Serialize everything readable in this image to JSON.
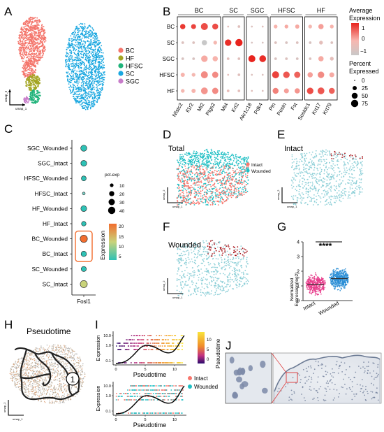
{
  "panel_letters": [
    "A",
    "B",
    "C",
    "D",
    "E",
    "F",
    "G",
    "H",
    "I",
    "J"
  ],
  "colors": {
    "BC": "#f4756b",
    "HF": "#a3a522",
    "HFSC": "#1fb37a",
    "SC": "#1aa7e0",
    "SGC": "#c77cc9",
    "intact": "#f8766d",
    "wounded": "#1fbfc4",
    "highlight": "#a50f15",
    "gradient_low": "#d9d9d9",
    "gradient_high": "#e8241e"
  },
  "panelA": {
    "umap_x": "umap_1",
    "umap_y": "umap_2",
    "legend": [
      {
        "label": "BC",
        "color": "#f4756b"
      },
      {
        "label": "HF",
        "color": "#a3a522"
      },
      {
        "label": "HFSC",
        "color": "#1fb37a"
      },
      {
        "label": "SC",
        "color": "#1aa7e0"
      },
      {
        "label": "SGC",
        "color": "#c77cc9"
      }
    ]
  },
  "panelB": {
    "chart_data": {
      "type": "dotplot",
      "groups": [
        {
          "name": "BC",
          "genes": [
            "Nfatc2",
            "Il1r2",
            "Mt2",
            "Ptgs2"
          ]
        },
        {
          "name": "SC",
          "genes": [
            "Mt4",
            "Krt2"
          ]
        },
        {
          "name": "SGC",
          "genes": [
            "Akr1c18",
            "Pdk4"
          ]
        },
        {
          "name": "HFSC",
          "genes": [
            "Ptn",
            "Postn",
            "Fst"
          ]
        },
        {
          "name": "HF",
          "genes": [
            "Sostdc1",
            "Krt17",
            "Krt79"
          ]
        }
      ],
      "rows": [
        "BC",
        "SC",
        "SGC",
        "HFSC",
        "HF"
      ],
      "expression": [
        [
          1.4,
          1.3,
          1.2,
          1.2,
          -0.3,
          -0.4,
          -0.5,
          -0.4,
          0.2,
          0.3,
          0.3,
          0.1,
          0.4,
          0.2
        ],
        [
          -0.5,
          -0.5,
          -1.0,
          0.1,
          1.5,
          1.6,
          -0.6,
          -0.6,
          -0.5,
          -0.6,
          -0.5,
          -0.6,
          -0.3,
          -0.5
        ],
        [
          -0.6,
          -0.6,
          0.3,
          0.2,
          -0.3,
          -0.4,
          1.6,
          1.5,
          -0.6,
          -0.5,
          -0.6,
          -0.5,
          0.3,
          -0.3
        ],
        [
          0.2,
          0.1,
          0.6,
          0.6,
          -0.3,
          -0.4,
          -0.5,
          -0.5,
          1.3,
          1.1,
          1.0,
          0.4,
          0.6,
          0.3
        ],
        [
          0.1,
          0.2,
          0.5,
          0.6,
          -0.2,
          -0.3,
          -0.4,
          -0.5,
          0.7,
          0.4,
          0.5,
          1.2,
          1.1,
          1.0
        ]
      ],
      "pct_expressed": [
        [
          40,
          35,
          70,
          50,
          5,
          10,
          5,
          5,
          20,
          20,
          25,
          20,
          40,
          20
        ],
        [
          10,
          10,
          40,
          20,
          60,
          75,
          5,
          5,
          10,
          10,
          10,
          10,
          20,
          10
        ],
        [
          10,
          10,
          60,
          40,
          10,
          10,
          70,
          65,
          10,
          10,
          10,
          10,
          40,
          20
        ],
        [
          25,
          20,
          70,
          55,
          5,
          10,
          5,
          5,
          70,
          60,
          55,
          40,
          60,
          35
        ],
        [
          20,
          25,
          65,
          55,
          10,
          10,
          5,
          5,
          50,
          35,
          40,
          60,
          65,
          50
        ]
      ],
      "legend_color": {
        "title": "Average\nExpression",
        "ticks": [
          "1",
          "0",
          "−1"
        ]
      },
      "legend_size": {
        "title": "Percent\nExpressed",
        "values": [
          0,
          25,
          50,
          75
        ],
        "labels": [
          "0",
          "25",
          "50",
          "75"
        ]
      }
    }
  },
  "panelC": {
    "chart_data": {
      "type": "dotplot",
      "gene": "Fosl1",
      "rows": [
        "SGC_Wounded",
        "SGC_Intact",
        "HFSC_Wounded",
        "HFSC_Intact",
        "HF_Wounded",
        "HF_Intact",
        "BC_Wounded",
        "BC_Intact",
        "SC_Wounded",
        "SC_Intact"
      ],
      "expression": [
        4,
        5,
        6,
        3,
        6,
        4,
        19,
        6,
        5,
        12
      ],
      "pct_exp": [
        28,
        26,
        18,
        6,
        26,
        16,
        40,
        22,
        20,
        38
      ],
      "colors": [
        "#2ec1b5",
        "#2ec1b5",
        "#2ec1b5",
        "#7bd3c9",
        "#2ec1b5",
        "#2ec1b5",
        "#f26d2e",
        "#2ec1b5",
        "#2ec1b5",
        "#c9d37a"
      ],
      "size_legend": {
        "title": "pct.exp",
        "values": [
          10,
          20,
          30,
          40
        ],
        "labels": [
          "10",
          "20",
          "30",
          "40"
        ]
      },
      "color_legend": {
        "title": "Expression",
        "ticks": [
          "20",
          "15",
          "10",
          "5"
        ]
      },
      "highlight_rows": [
        "BC_Wounded",
        "BC_Intact"
      ]
    }
  },
  "panelD": {
    "label": "Total",
    "legend": [
      {
        "label": "Intact",
        "color": "#f8766d"
      },
      {
        "label": "Wounded",
        "color": "#1fbfc4"
      }
    ],
    "umap_x": "umap_1",
    "umap_y": "umap_2"
  },
  "panelE": {
    "label": "Intact",
    "umap_x": "umap_1",
    "umap_y": "umap_2"
  },
  "panelF": {
    "label": "Wounded",
    "umap_x": "umap_1",
    "umap_y": "umap_2"
  },
  "panelG": {
    "chart_data": {
      "type": "swarm",
      "categories": [
        "Intact",
        "Wounded"
      ],
      "medians": [
        1.1,
        1.5
      ],
      "ylabel": "Normalized\nExpression(log2)",
      "ylim": [
        0,
        4
      ],
      "yticks": [
        "0",
        "1",
        "2",
        "3",
        "4"
      ],
      "significance": "****",
      "colors": [
        "#e83e8c",
        "#2c8fd6"
      ]
    }
  },
  "panelH": {
    "title": "Pseudotime",
    "root_label": "1",
    "umap_x": "umap_1",
    "umap_y": "umap_2"
  },
  "panelI": {
    "top": {
      "ylabel": "Expression",
      "xlabel": "Pseudotime",
      "yticks": [
        "10.0",
        "1.0",
        "0.1"
      ],
      "xticks": [
        "0",
        "5",
        "10"
      ],
      "colorbar_title": "Pseudotime",
      "colorbar_ticks": [
        "10",
        "5",
        "0"
      ]
    },
    "bottom": {
      "ylabel": "Expression",
      "xlabel": "Pseudotime",
      "yticks": [
        "10.0",
        "1.0",
        "0.1"
      ],
      "xticks": [
        "0",
        "5",
        "10"
      ],
      "legend": [
        {
          "label": "Intact",
          "color": "#f8766d"
        },
        {
          "label": "Wounded",
          "color": "#1fbfc4"
        }
      ]
    }
  }
}
